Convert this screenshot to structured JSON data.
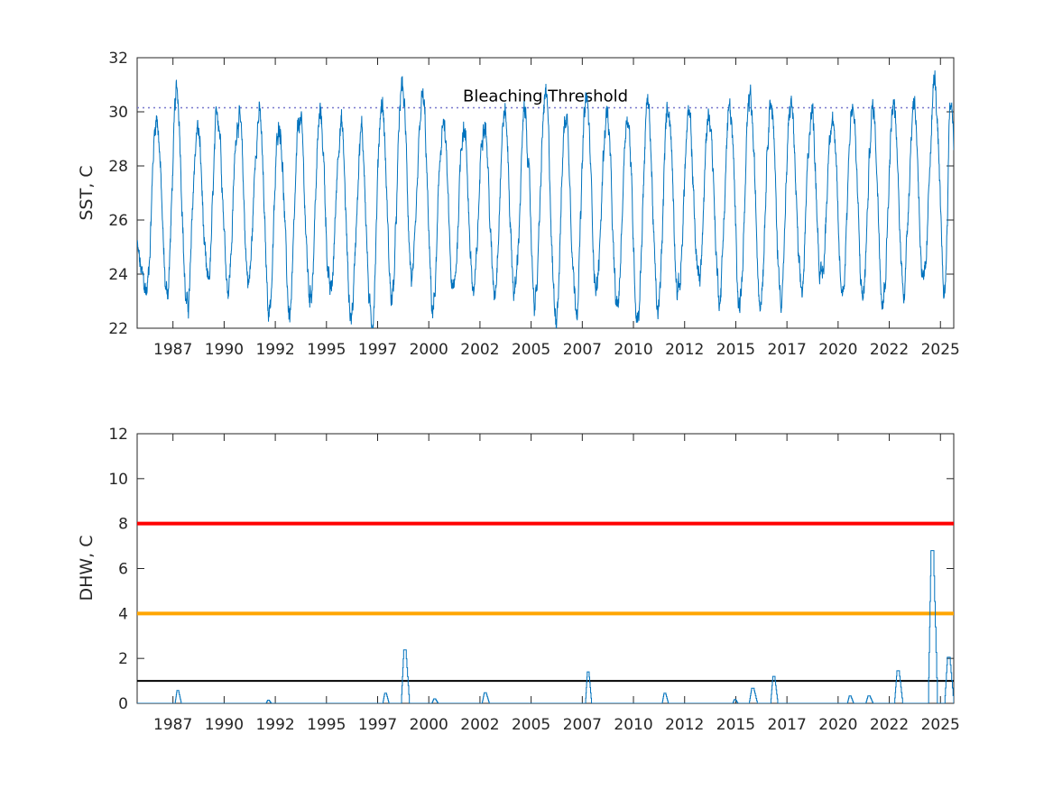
{
  "chart_data": [
    {
      "type": "line",
      "ylabel": "SST, C",
      "ylim": [
        22,
        32
      ],
      "yticks": [
        22,
        24,
        26,
        28,
        30,
        32
      ],
      "xlim": [
        1985.25,
        2025.15
      ],
      "xticks": [
        1987.0,
        1989.5,
        1992.0,
        1994.5,
        1997.0,
        1999.5,
        2002.0,
        2004.5,
        2007.0,
        2009.5,
        2012.0,
        2014.5,
        2017.0,
        2019.5,
        2022.0,
        2024.5
      ],
      "xtick_labels": [
        "1987",
        "1990",
        "1992",
        "1995",
        "1997",
        "2000",
        "2002",
        "2005",
        "2007",
        "2010",
        "2012",
        "2015",
        "2017",
        "2020",
        "2022",
        "2025"
      ],
      "threshold": {
        "label": "Bleaching Threshold",
        "value": 30.15,
        "style": "dotted",
        "color": "#7777cc"
      },
      "series": [
        {
          "color": "#0072bd",
          "seasonal": {
            "mean": 26.5,
            "amplitude": 3.0,
            "peak_fraction_of_year": 0.2,
            "noise": 0.6
          },
          "annual_peaks": [
            [
              1986.2,
              29.9
            ],
            [
              1987.2,
              30.6
            ],
            [
              1988.2,
              29.4
            ],
            [
              1989.2,
              29.9
            ],
            [
              1990.2,
              30.0
            ],
            [
              1991.2,
              30.0
            ],
            [
              1992.2,
              29.7
            ],
            [
              1993.2,
              29.7
            ],
            [
              1994.2,
              29.8
            ],
            [
              1995.2,
              29.7
            ],
            [
              1996.2,
              29.3
            ],
            [
              1997.2,
              30.4
            ],
            [
              1998.2,
              30.9
            ],
            [
              1999.2,
              30.4
            ],
            [
              2000.2,
              29.6
            ],
            [
              2001.2,
              29.6
            ],
            [
              2002.2,
              30.0
            ],
            [
              2003.2,
              30.0
            ],
            [
              2004.2,
              29.8
            ],
            [
              2005.2,
              30.5
            ],
            [
              2006.2,
              29.9
            ],
            [
              2007.2,
              30.4
            ],
            [
              2008.2,
              30.0
            ],
            [
              2009.2,
              30.0
            ],
            [
              2010.2,
              30.3
            ],
            [
              2011.2,
              30.3
            ],
            [
              2012.2,
              29.7
            ],
            [
              2013.2,
              30.0
            ],
            [
              2014.2,
              30.1
            ],
            [
              2015.2,
              30.4
            ],
            [
              2016.2,
              30.6
            ],
            [
              2017.2,
              30.3
            ],
            [
              2018.2,
              30.1
            ],
            [
              2019.2,
              30.1
            ],
            [
              2020.2,
              30.3
            ],
            [
              2021.2,
              30.1
            ],
            [
              2022.2,
              30.2
            ],
            [
              2023.2,
              30.4
            ],
            [
              2024.2,
              31.1
            ],
            [
              2025.0,
              30.4
            ]
          ],
          "annual_troughs": [
            [
              1985.7,
              23.4
            ],
            [
              1986.7,
              23.3
            ],
            [
              1987.7,
              22.7
            ],
            [
              1988.7,
              23.5
            ],
            [
              1989.7,
              23.7
            ],
            [
              1990.7,
              23.8
            ],
            [
              1991.7,
              22.8
            ],
            [
              1992.7,
              22.6
            ],
            [
              1993.7,
              23.2
            ],
            [
              1994.7,
              23.2
            ],
            [
              1995.7,
              22.5
            ],
            [
              1996.7,
              22.1
            ],
            [
              1997.7,
              23.1
            ],
            [
              1998.7,
              23.8
            ],
            [
              1999.7,
              22.7
            ],
            [
              2000.7,
              23.2
            ],
            [
              2001.7,
              23.3
            ],
            [
              2002.7,
              23.5
            ],
            [
              2003.7,
              23.4
            ],
            [
              2004.7,
              23.1
            ],
            [
              2005.7,
              22.6
            ],
            [
              2006.7,
              23.0
            ],
            [
              2007.7,
              23.6
            ],
            [
              2008.7,
              22.6
            ],
            [
              2009.7,
              22.6
            ],
            [
              2010.7,
              22.5
            ],
            [
              2011.7,
              23.4
            ],
            [
              2012.7,
              23.8
            ],
            [
              2013.7,
              23.3
            ],
            [
              2014.7,
              23.1
            ],
            [
              2015.7,
              23.3
            ],
            [
              2016.7,
              23.3
            ],
            [
              2017.7,
              23.2
            ],
            [
              2018.7,
              23.7
            ],
            [
              2019.7,
              23.4
            ],
            [
              2020.7,
              23.2
            ],
            [
              2021.7,
              23.4
            ],
            [
              2022.7,
              23.6
            ],
            [
              2023.7,
              23.4
            ],
            [
              2024.7,
              23.3
            ]
          ]
        }
      ]
    },
    {
      "type": "line",
      "ylabel": "DHW, C",
      "ylim": [
        0,
        12
      ],
      "yticks": [
        0,
        2,
        4,
        6,
        8,
        10,
        12
      ],
      "xlim": [
        1985.25,
        2025.15
      ],
      "xticks": [
        1987.0,
        1989.5,
        1992.0,
        1994.5,
        1997.0,
        1999.5,
        2002.0,
        2004.5,
        2007.0,
        2009.5,
        2012.0,
        2014.5,
        2017.0,
        2019.5,
        2022.0,
        2024.5
      ],
      "xtick_labels": [
        "1987",
        "1990",
        "1992",
        "1995",
        "1997",
        "2000",
        "2002",
        "2005",
        "2007",
        "2010",
        "2012",
        "2015",
        "2017",
        "2020",
        "2022",
        "2025"
      ],
      "reference_lines": [
        {
          "value": 8,
          "color": "#ff0000"
        },
        {
          "value": 4,
          "color": "#ffa500"
        },
        {
          "value": 1,
          "color": "#000000"
        }
      ],
      "series": [
        {
          "color": "#0072bd",
          "events": [
            {
              "start": 1987.1,
              "end": 1987.4,
              "peak": 0.57
            },
            {
              "start": 1991.55,
              "end": 1991.8,
              "peak": 0.14
            },
            {
              "start": 1997.25,
              "end": 1997.55,
              "peak": 0.45
            },
            {
              "start": 1998.15,
              "end": 1998.55,
              "peak": 2.38
            },
            {
              "start": 1999.65,
              "end": 1999.95,
              "peak": 0.2
            },
            {
              "start": 2002.1,
              "end": 2002.45,
              "peak": 0.47
            },
            {
              "start": 2007.15,
              "end": 2007.45,
              "peak": 1.4
            },
            {
              "start": 2010.9,
              "end": 2011.2,
              "peak": 0.45
            },
            {
              "start": 2014.35,
              "end": 2014.6,
              "peak": 0.17
            },
            {
              "start": 2015.15,
              "end": 2015.55,
              "peak": 0.67
            },
            {
              "start": 2016.2,
              "end": 2016.55,
              "peak": 1.2
            },
            {
              "start": 2019.95,
              "end": 2020.25,
              "peak": 0.33
            },
            {
              "start": 2020.85,
              "end": 2021.2,
              "peak": 0.33
            },
            {
              "start": 2022.25,
              "end": 2022.65,
              "peak": 1.45
            },
            {
              "start": 2023.9,
              "end": 2024.35,
              "peak": 6.8
            },
            {
              "start": 2024.7,
              "end": 2025.15,
              "peak": 2.05
            }
          ]
        }
      ]
    }
  ]
}
